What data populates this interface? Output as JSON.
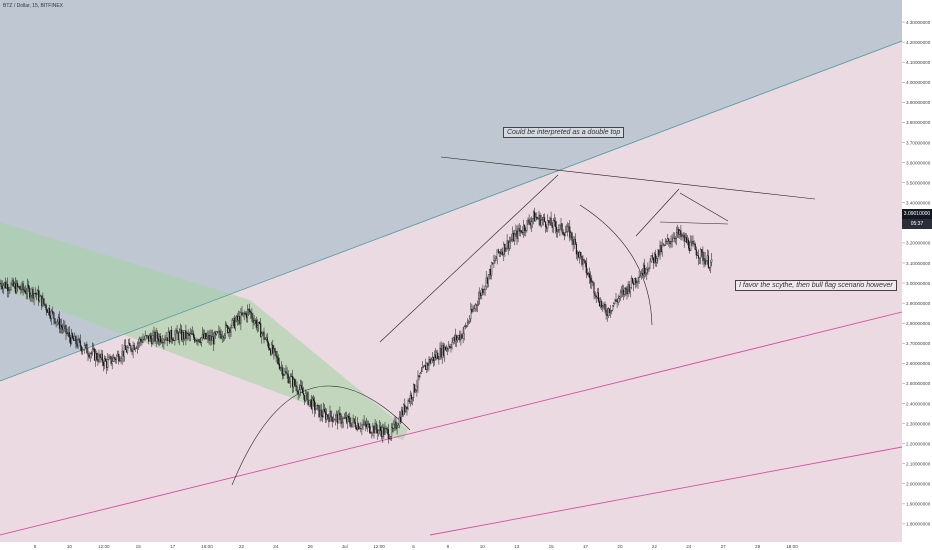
{
  "header": {
    "symbol_label": "BTZ / Dollar, 15, BITFINEX"
  },
  "annotations": {
    "double_top": "Could be interpreted as a double top",
    "bull_flag": "I favor the scythe, then bull flag scenario however"
  },
  "price_axis": {
    "last_price": "3.09010000",
    "countdown": "05:37"
  },
  "chart_data": {
    "type": "line",
    "title": "",
    "xlabel": "",
    "ylabel": "",
    "x_ticks": [
      "8",
      "10",
      "12:00",
      "15",
      "17",
      "18:00",
      "22",
      "24",
      "26",
      "Jul",
      "12:00",
      "6",
      "8",
      "10",
      "13",
      "15",
      "17",
      "20",
      "22",
      "24",
      "27",
      "29",
      "18:00"
    ],
    "y_ticks": [
      "4.40000000",
      "4.30000000",
      "4.20000000",
      "4.10000000",
      "4.00000000",
      "3.90000000",
      "3.80000000",
      "3.70000000",
      "3.60000000",
      "3.50000000",
      "3.40000000",
      "3.30000000",
      "3.20000000",
      "3.10000000",
      "3.00000000",
      "2.90000000",
      "2.80000000",
      "2.70000000",
      "2.60000000",
      "2.50000000",
      "2.40000000",
      "2.30000000",
      "2.20000000",
      "2.10000000",
      "2.00000000",
      "1.90000000",
      "1.80000000",
      "1.70000000"
    ],
    "ylim": [
      1.7,
      4.4
    ],
    "grid": false,
    "price_path": [
      [
        "8",
        3.0
      ],
      [
        "10",
        2.95
      ],
      [
        "12:00",
        2.72
      ],
      [
        "15",
        2.6
      ],
      [
        "17",
        2.72
      ],
      [
        "18:00",
        2.74
      ],
      [
        "22",
        2.72
      ],
      [
        "24",
        2.86
      ],
      [
        "26",
        2.55
      ],
      [
        "Jul",
        2.35
      ],
      [
        "12:00",
        2.3
      ],
      [
        "6",
        2.25
      ],
      [
        "8",
        2.6
      ],
      [
        "10",
        2.75
      ],
      [
        "13",
        3.15
      ],
      [
        "15",
        3.33
      ],
      [
        "17",
        3.25
      ],
      [
        "20",
        2.85
      ],
      [
        "22",
        3.05
      ],
      [
        "24",
        3.25
      ],
      [
        "27",
        3.09
      ]
    ],
    "colors": {
      "upper_channel": "#4a9a9a",
      "lower_channels": "#d64fa0",
      "candles": "#111111",
      "trend_lines": "#222222"
    }
  }
}
